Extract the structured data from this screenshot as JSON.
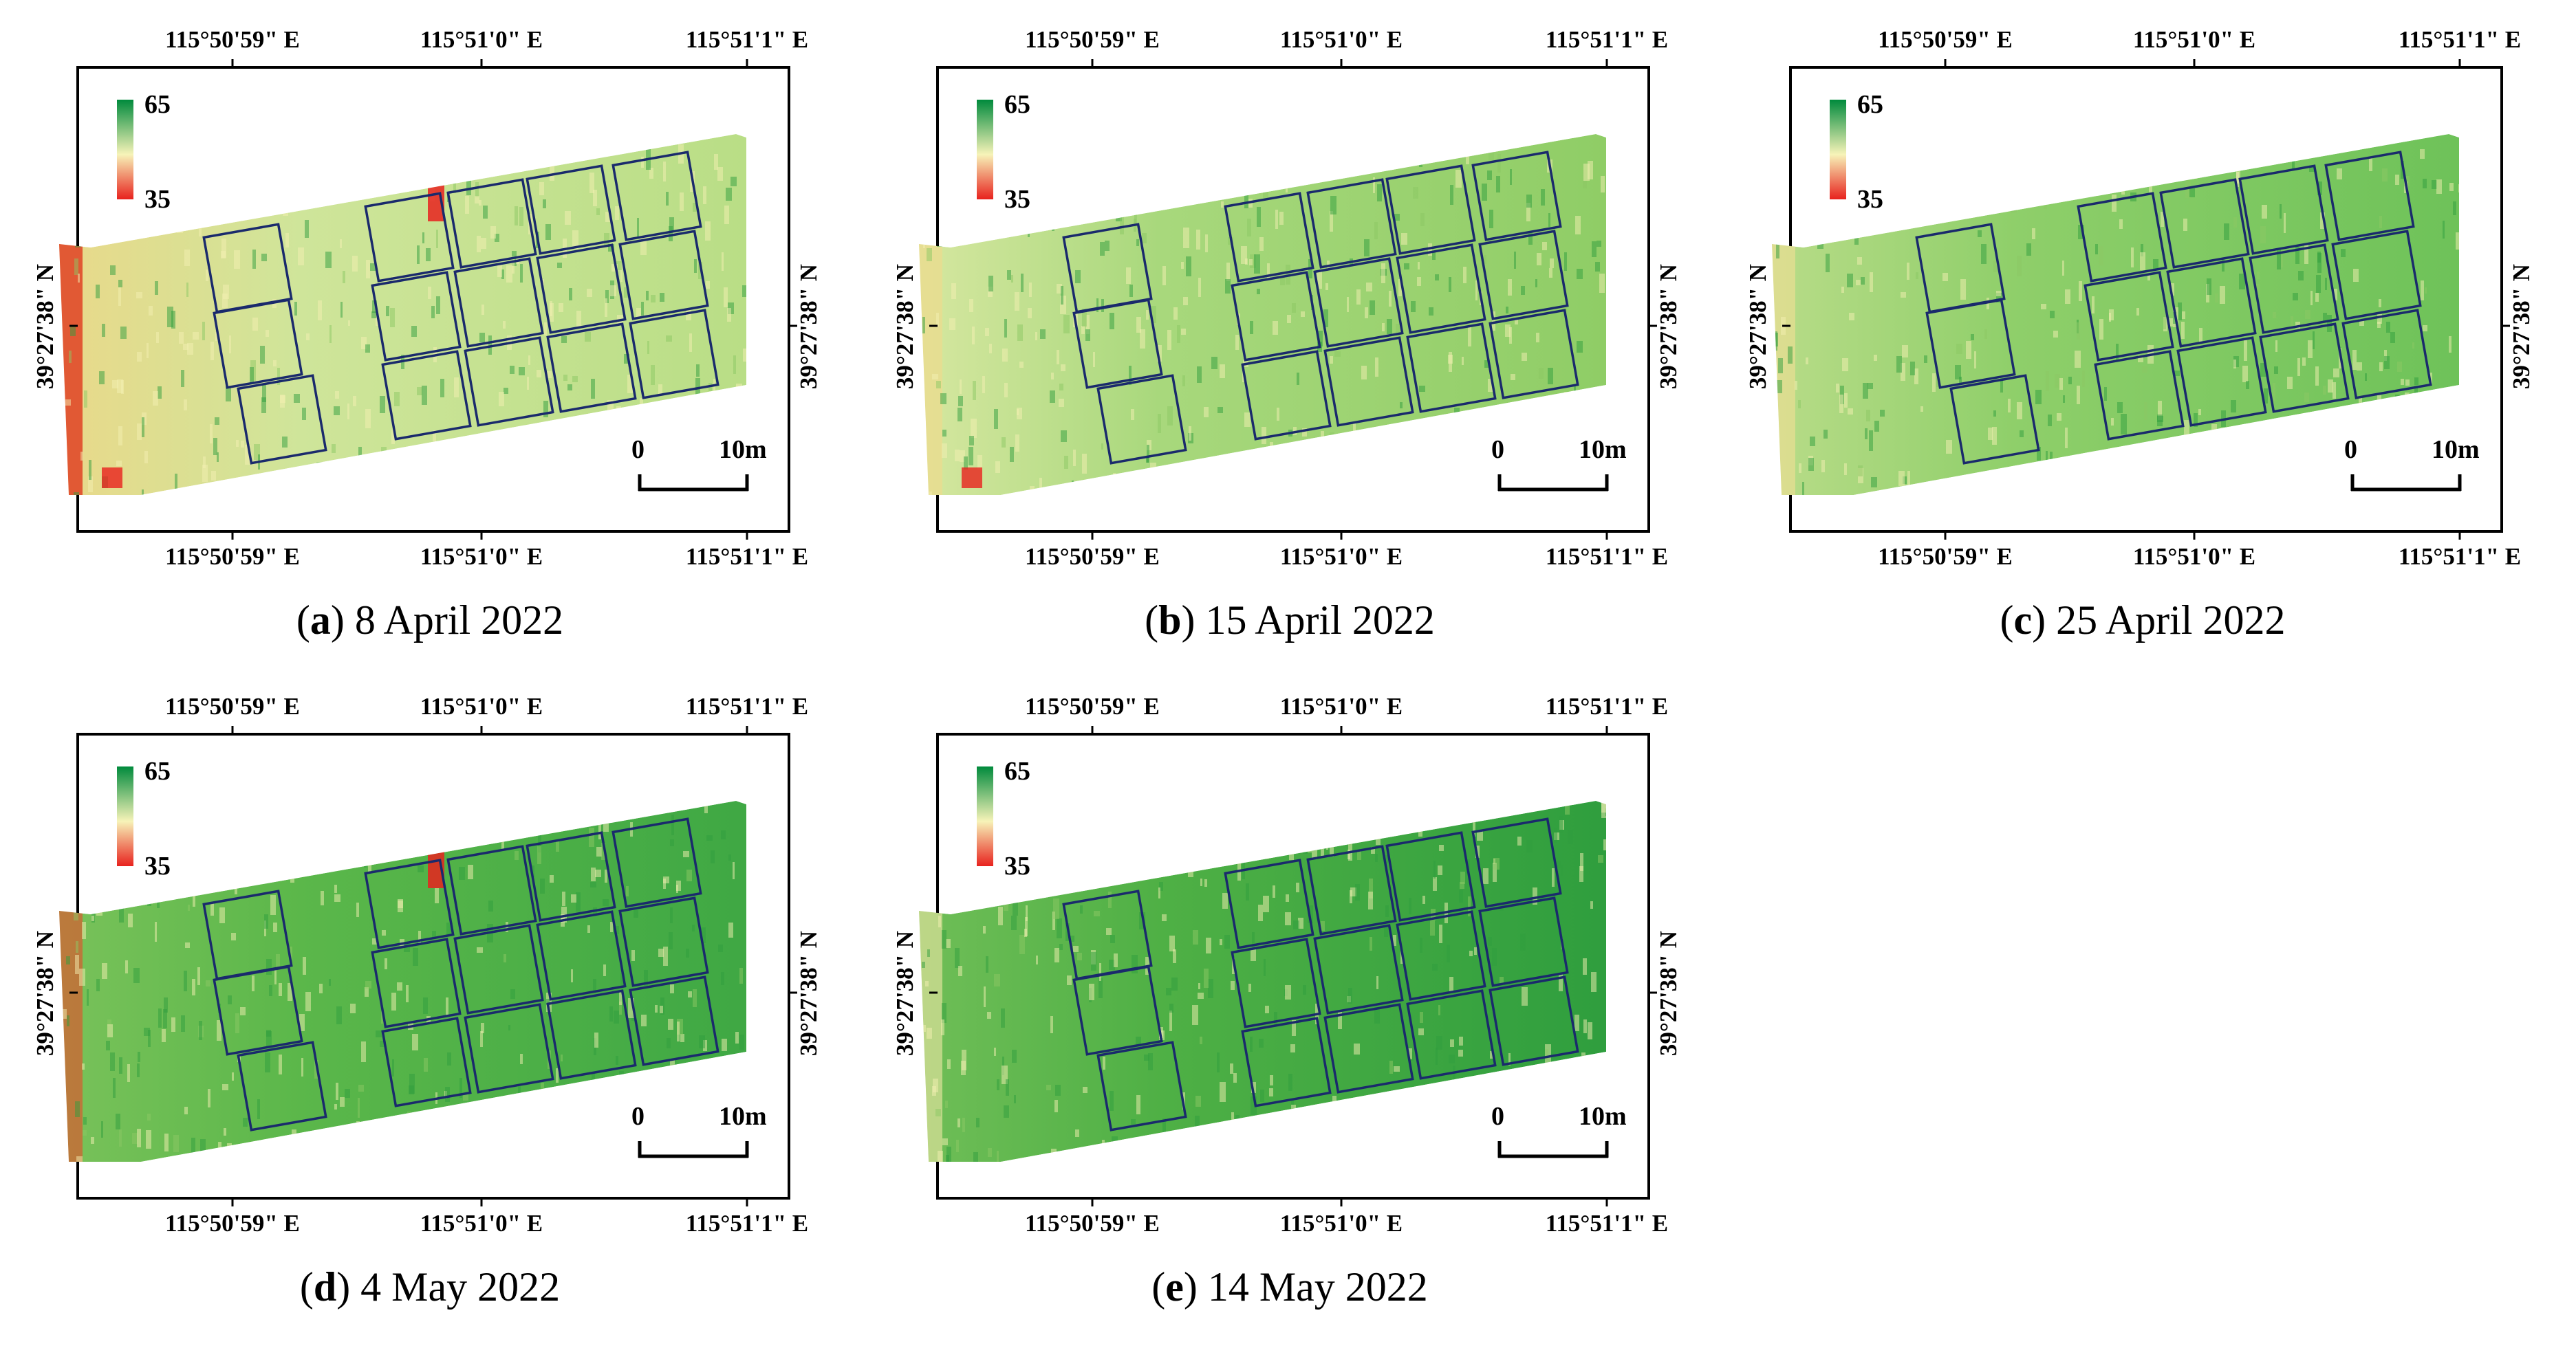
{
  "legend": {
    "max_label": "65",
    "min_label": "35"
  },
  "scalebar": {
    "start_label": "0",
    "end_label": "10m"
  },
  "coords": {
    "lon_left": "115°50'59\" E",
    "lon_mid": "115°51'0\" E",
    "lon_right": "115°51'1\" E",
    "lat": "39°27'38\" N"
  },
  "panels": [
    {
      "letter": "a",
      "date": "8 April 2022",
      "stage": 0,
      "phase": 0
    },
    {
      "letter": "b",
      "date": "15 April 2022",
      "stage": 1,
      "phase": 1
    },
    {
      "letter": "c",
      "date": "25 April 2022",
      "stage": 2,
      "phase": 2
    },
    {
      "letter": "d",
      "date": "4 May 2022",
      "stage": 3,
      "phase": 0
    },
    {
      "letter": "e",
      "date": "14 May 2022",
      "stage": 4,
      "phase": 1
    }
  ],
  "colors": {
    "high": "#008a3c",
    "mid": "#f7f3b8",
    "low": "#e8221e",
    "plot_outline": "#1a2a6c",
    "frame": "#000000"
  }
}
